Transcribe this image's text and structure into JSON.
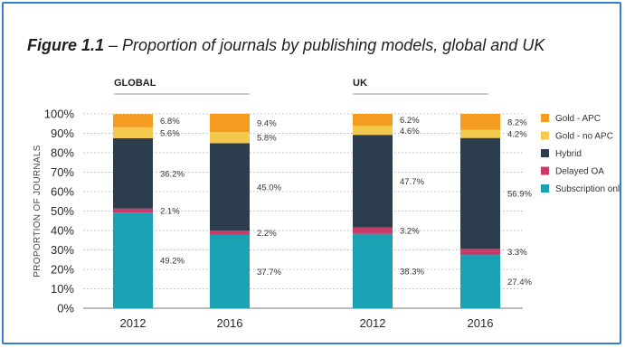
{
  "figure": {
    "number": "Figure 1.1",
    "caption": " – Proportion of journals by publishing models, global and UK"
  },
  "colors": {
    "gold_apc": "#f39c1f",
    "gold_no_apc": "#f3c94e",
    "hybrid": "#2c3e4d",
    "delayed_oa": "#c93b6a",
    "subscription_only": "#1aa1b4",
    "frame": "#2f80d7"
  },
  "chart_data": {
    "type": "bar",
    "stacked": true,
    "ylabel": "PROPORTION OF JOURNALS",
    "ylim": [
      0,
      100
    ],
    "yticks": [
      "0%",
      "10%",
      "20%",
      "30%",
      "40%",
      "50%",
      "60%",
      "70%",
      "80%",
      "90%",
      "100%"
    ],
    "grid": true,
    "legend_position": "right",
    "groups": [
      {
        "name": "GLOBAL",
        "categories": [
          "2012",
          "2016"
        ]
      },
      {
        "name": "UK",
        "categories": [
          "2012",
          "2016"
        ]
      }
    ],
    "categories": [
      "2012",
      "2016",
      "2012",
      "2016"
    ],
    "series": [
      {
        "name": "Subscription only",
        "values": [
          49.2,
          37.7,
          38.3,
          27.4
        ],
        "labels": [
          "49.2%",
          "37.7%",
          "38.3%",
          "27.4%"
        ]
      },
      {
        "name": "Delayed OA",
        "values": [
          2.1,
          2.2,
          3.2,
          3.3
        ],
        "labels": [
          "2.1%",
          "2.2%",
          "3.2%",
          "3.3%"
        ]
      },
      {
        "name": "Hybrid",
        "values": [
          36.2,
          45.0,
          47.7,
          56.9
        ],
        "labels": [
          "36.2%",
          "45.0%",
          "47.7%",
          "56.9%"
        ]
      },
      {
        "name": "Gold - no APC",
        "values": [
          5.6,
          5.8,
          4.6,
          4.2
        ],
        "labels": [
          "5.6%",
          "5.8%",
          "4.6%",
          "4.2%"
        ]
      },
      {
        "name": "Gold - APC",
        "values": [
          6.8,
          9.4,
          6.2,
          8.2
        ],
        "labels": [
          "6.8%",
          "9.4%",
          "6.2%",
          "8.2%"
        ]
      }
    ],
    "legend": [
      "Gold - APC",
      "Gold - no APC",
      "Hybrid",
      "Delayed OA",
      "Subscription only"
    ]
  }
}
